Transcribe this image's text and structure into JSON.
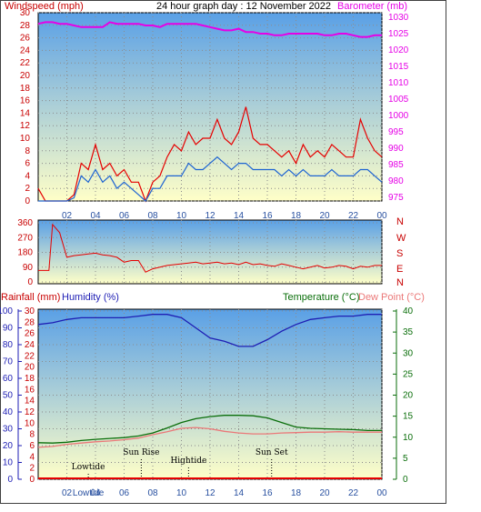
{
  "colors": {
    "wind": "#e60000",
    "wind_avg": "#1e64d2",
    "baro": "#e600e6",
    "humidity": "#1e1eb4",
    "temperature": "#0a6e0a",
    "dewpoint": "#eb7878",
    "rain_axis": "#c80000",
    "sky_top": "#5aa0e6",
    "sky_bottom": "#ffffc8"
  },
  "chart_data": [
    {
      "id": "wind-baro",
      "type": "line",
      "title": "24 hour graph day : 12 November 2022",
      "ylabel_left": "Windspeed (mph)",
      "ylabel_right": "Barometer (mb)",
      "ylim_left": [
        0,
        30
      ],
      "yticks_left": [
        0,
        2,
        4,
        6,
        8,
        10,
        12,
        14,
        16,
        18,
        20,
        22,
        24,
        26,
        28,
        30
      ],
      "ylim_right": [
        975,
        1030
      ],
      "yticks_right": [
        975,
        980,
        985,
        990,
        995,
        1000,
        1005,
        1010,
        1015,
        1020,
        1025,
        1030
      ],
      "xticks": [
        "02",
        "04",
        "06",
        "08",
        "10",
        "12",
        "14",
        "16",
        "18",
        "20",
        "22",
        "00"
      ],
      "series": [
        {
          "key": "gust",
          "x": [
            0,
            0.5,
            1,
            1.5,
            2,
            2.5,
            3,
            3.5,
            4,
            4.5,
            5,
            5.5,
            6,
            6.5,
            7,
            7.5,
            8,
            8.5,
            9,
            9.5,
            10,
            10.5,
            11,
            11.5,
            12,
            12.5,
            13,
            13.5,
            14,
            14.5,
            15,
            15.5,
            16,
            16.5,
            17,
            17.5,
            18,
            18.5,
            19,
            19.5,
            20,
            20.5,
            21,
            21.5,
            22,
            22.5,
            23,
            23.5,
            24
          ],
          "y": [
            2,
            0,
            0,
            0,
            0,
            1,
            6,
            5,
            9,
            5,
            6,
            4,
            5,
            3,
            3,
            0,
            3,
            4,
            7,
            9,
            8,
            11,
            9,
            10,
            10,
            13,
            10,
            9,
            11,
            15,
            10,
            9,
            9,
            8,
            7,
            8,
            6,
            9,
            7,
            8,
            7,
            9,
            8,
            7,
            7,
            13,
            10,
            8,
            7
          ]
        },
        {
          "key": "avg",
          "x": [
            0,
            0.5,
            1,
            1.5,
            2,
            2.5,
            3,
            3.5,
            4,
            4.5,
            5,
            5.5,
            6,
            6.5,
            7,
            7.5,
            8,
            8.5,
            9,
            9.5,
            10,
            10.5,
            11,
            11.5,
            12,
            12.5,
            13,
            13.5,
            14,
            14.5,
            15,
            15.5,
            16,
            16.5,
            17,
            17.5,
            18,
            18.5,
            19,
            19.5,
            20,
            20.5,
            21,
            21.5,
            22,
            22.5,
            23,
            23.5,
            24
          ],
          "y": [
            0,
            0,
            0,
            0,
            0,
            0.5,
            4,
            3,
            5,
            3,
            4,
            2,
            3,
            2,
            1,
            0,
            2,
            2,
            4,
            4,
            4,
            6,
            5,
            5,
            6,
            7,
            6,
            5,
            6,
            6,
            5,
            5,
            5,
            5,
            4,
            5,
            4,
            5,
            4,
            4,
            4,
            5,
            4,
            4,
            4,
            5,
            5,
            4,
            3
          ]
        },
        {
          "key": "baro",
          "x": [
            0,
            0.5,
            1,
            1.5,
            2,
            2.5,
            3,
            3.5,
            4,
            4.5,
            5,
            5.5,
            6,
            6.5,
            7,
            7.5,
            8,
            8.5,
            9,
            9.5,
            10,
            10.5,
            11,
            11.5,
            12,
            12.5,
            13,
            13.5,
            14,
            14.5,
            15,
            15.5,
            16,
            16.5,
            17,
            17.5,
            18,
            18.5,
            19,
            19.5,
            20,
            20.5,
            21,
            21.5,
            22,
            22.5,
            23,
            23.5,
            24
          ],
          "y": [
            1028,
            1028.5,
            1028.5,
            1028,
            1028,
            1027.5,
            1027,
            1027,
            1027,
            1027,
            1028.5,
            1028,
            1028,
            1028,
            1028,
            1027.5,
            1027.5,
            1027,
            1028,
            1028,
            1028,
            1028,
            1028,
            1027.5,
            1027,
            1026.5,
            1026,
            1026,
            1026.5,
            1025.5,
            1025.5,
            1025,
            1025,
            1024.5,
            1024.5,
            1025,
            1025,
            1025,
            1025,
            1025,
            1024.5,
            1024.5,
            1025,
            1025,
            1024.5,
            1024,
            1024,
            1024.5,
            1024.5
          ]
        }
      ]
    },
    {
      "id": "direction",
      "type": "line",
      "ylabel_right": [
        "N",
        "W",
        "S",
        "E",
        "N"
      ],
      "ylim": [
        0,
        360
      ],
      "yticks": [
        0,
        90,
        180,
        270,
        360
      ],
      "x": [
        0,
        0.5,
        0.75,
        1,
        1.5,
        2,
        2.5,
        3,
        3.5,
        4,
        4.5,
        5,
        5.5,
        6,
        6.5,
        7,
        7.5,
        8,
        8.5,
        9,
        9.5,
        10,
        10.5,
        11,
        11.5,
        12,
        12.5,
        13,
        13.5,
        14,
        14.5,
        15,
        15.5,
        16,
        16.5,
        17,
        17.5,
        18,
        18.5,
        19,
        19.5,
        20,
        20.5,
        21,
        21.5,
        22,
        22.5,
        23,
        23.5,
        24
      ],
      "y": [
        70,
        70,
        70,
        350,
        300,
        150,
        160,
        165,
        170,
        175,
        165,
        160,
        150,
        120,
        130,
        130,
        60,
        80,
        90,
        100,
        105,
        110,
        115,
        120,
        110,
        115,
        120,
        110,
        115,
        105,
        120,
        105,
        110,
        100,
        95,
        110,
        100,
        90,
        80,
        90,
        100,
        85,
        90,
        100,
        95,
        80,
        95,
        90,
        100,
        100
      ]
    },
    {
      "id": "temp-hum",
      "type": "line",
      "ylabel_left_outer": "Rainfall (mm)",
      "ylabel_left_inner": "Humidity (%)",
      "ylabel_right": "Temperature (°C)",
      "ylabel_right2": "Dew Point (°C)",
      "yticks_humidity": [
        0,
        10,
        20,
        30,
        40,
        50,
        60,
        70,
        80,
        90,
        100
      ],
      "yticks_rain": [
        0,
        2,
        4,
        6,
        8,
        10,
        12,
        14,
        16,
        18,
        20,
        22,
        24,
        26,
        28,
        30
      ],
      "yticks_temp": [
        0,
        5,
        10,
        15,
        20,
        25,
        30,
        35,
        40
      ],
      "ylim_temp": [
        0,
        40
      ],
      "annotations": [
        "Lowtide",
        "Sun Rise",
        "Hightide",
        "Sun Set"
      ],
      "annotation_hours": [
        3.5,
        7.2,
        10.5,
        16.3
      ],
      "xticks_bottom": [
        "02",
        "Lowtide",
        "04",
        "06",
        "08",
        "10",
        "12",
        "14",
        "16",
        "18",
        "20",
        "22",
        "00"
      ],
      "series": [
        {
          "key": "humidity",
          "x": [
            0,
            1,
            2,
            3,
            4,
            5,
            6,
            7,
            8,
            9,
            10,
            11,
            12,
            13,
            14,
            15,
            16,
            17,
            18,
            19,
            20,
            21,
            22,
            23,
            24
          ],
          "y": [
            92,
            93,
            95,
            96,
            96,
            96,
            96,
            97,
            98,
            98,
            96,
            90,
            84,
            82,
            79,
            79,
            83,
            88,
            92,
            95,
            96,
            97,
            97,
            98,
            98
          ]
        },
        {
          "key": "temperature",
          "x": [
            0,
            1,
            2,
            3,
            4,
            5,
            6,
            7,
            8,
            9,
            10,
            11,
            12,
            13,
            14,
            15,
            16,
            17,
            18,
            19,
            20,
            21,
            22,
            23,
            24
          ],
          "y": [
            8.7,
            8.6,
            8.8,
            9.2,
            9.5,
            9.7,
            9.9,
            10.3,
            11.0,
            12.2,
            13.5,
            14.4,
            14.9,
            15.2,
            15.2,
            15.1,
            14.6,
            13.5,
            12.4,
            12.1,
            12.0,
            11.9,
            11.8,
            11.6,
            11.6
          ]
        },
        {
          "key": "dewpoint",
          "x": [
            0,
            1,
            2,
            3,
            4,
            5,
            6,
            7,
            8,
            9,
            10,
            11,
            12,
            13,
            14,
            15,
            16,
            17,
            18,
            19,
            20,
            21,
            22,
            23,
            24
          ],
          "y": [
            7.6,
            7.8,
            8.3,
            8.6,
            8.9,
            9.1,
            9.4,
            9.8,
            10.6,
            11.3,
            12.1,
            12.3,
            12.0,
            11.4,
            11.0,
            10.8,
            10.8,
            11.0,
            11.1,
            11.2,
            11.2,
            11.3,
            11.2,
            11.2,
            11.2
          ]
        },
        {
          "key": "rain",
          "x": [
            0,
            24
          ],
          "y": [
            0,
            0
          ]
        }
      ]
    }
  ]
}
